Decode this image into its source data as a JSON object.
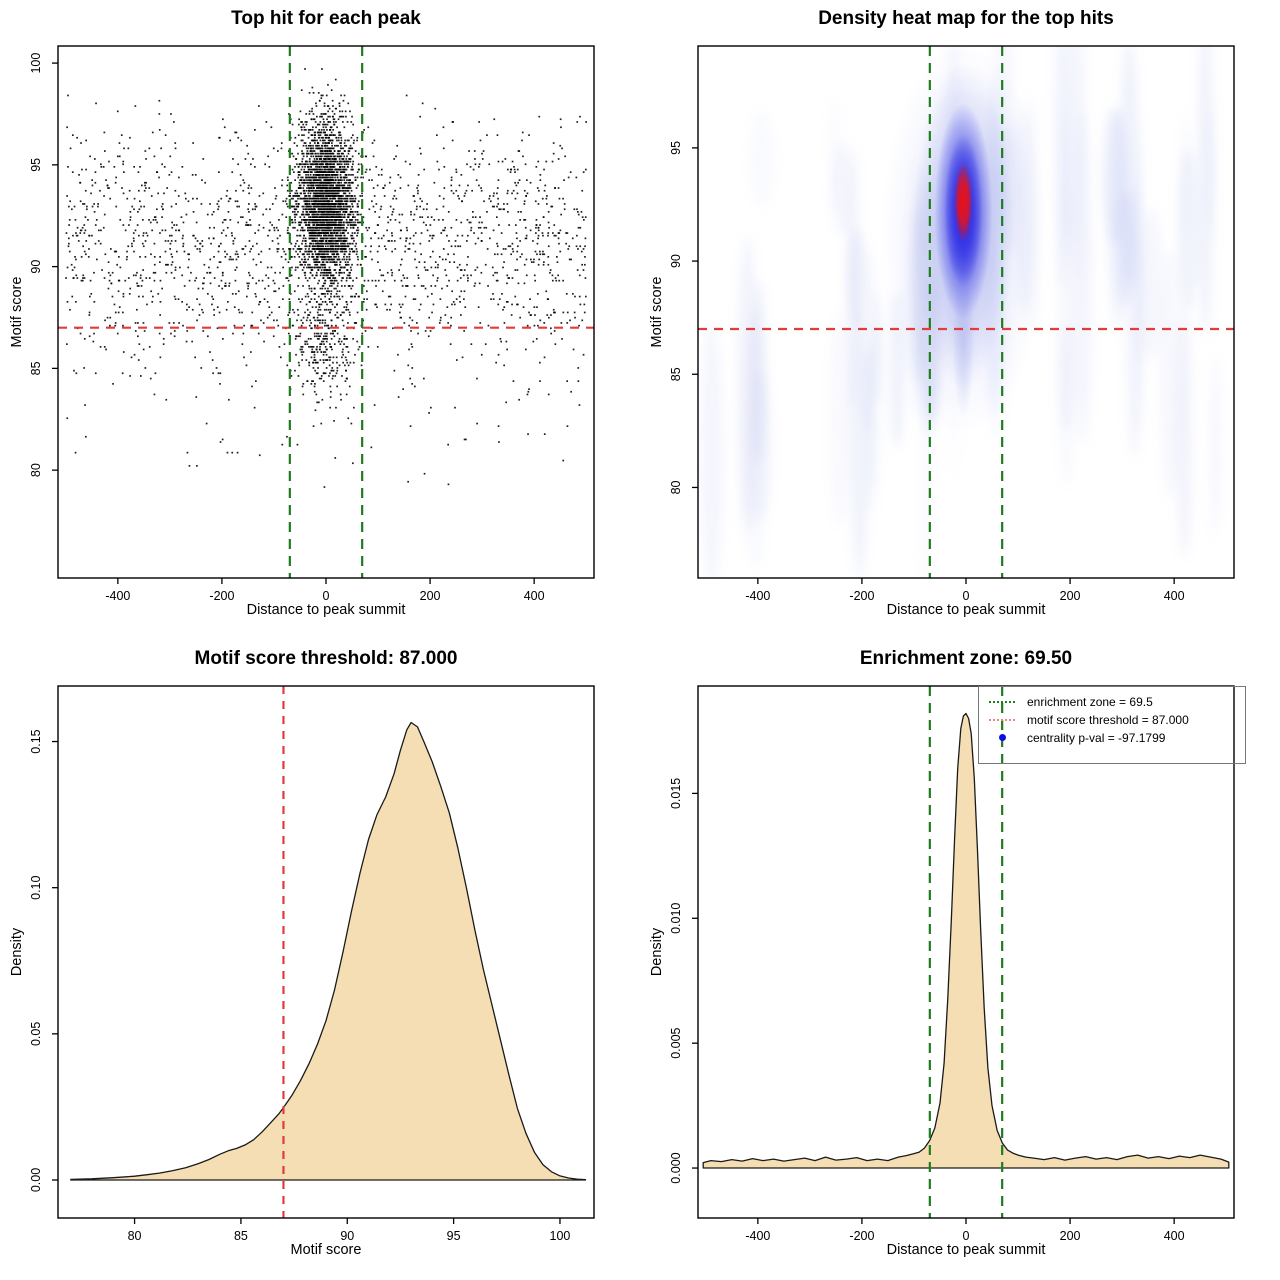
{
  "figure_background": "#ffffff",
  "colors": {
    "threshold_red": "#E03C3C",
    "enrichment_green": "#1E7D1E",
    "density_fill": "#F5DEB3",
    "density_stroke": "#1a1a1a",
    "point_black": "#000000",
    "legend_red_swatch": "#F08080",
    "legend_blue_dot": "#0D0DE8",
    "heat_halo": "#8892E6",
    "heat_dense": "#2424E4",
    "heat_core": "#F01111",
    "heat_streak": "#A9B4EC"
  },
  "chart_data": [
    {
      "id": "top_hit_scatter",
      "type": "scatter",
      "title": "Top hit for each peak",
      "xlabel": "Distance to peak summit",
      "ylabel": "Motif score",
      "xlim": [
        -515,
        515
      ],
      "ylim": [
        74.7,
        100.84
      ],
      "xticks": {
        "values": [
          -400,
          -200,
          0,
          200,
          400
        ],
        "labels": [
          "-400",
          "-200",
          "0",
          "200",
          "400"
        ]
      },
      "yticks": {
        "values": [
          80,
          85,
          90,
          95,
          100
        ],
        "labels": [
          "80",
          "85",
          "90",
          "95",
          "100"
        ]
      },
      "motif_score_threshold": 87.0,
      "enrichment_zone": [
        -69.5,
        69.5
      ],
      "grid": false,
      "seed": 42,
      "y_quantize": 0.13,
      "points": [
        {
          "n": 3200,
          "x": {
            "dist": "normal",
            "mean": 0,
            "sd": 27,
            "min": -500,
            "max": 500
          },
          "y": {
            "dist": "normal",
            "mean": 93.1,
            "sd": 2.0,
            "min": 86.8,
            "max": 100.3
          }
        },
        {
          "n": 260,
          "x": {
            "dist": "normal",
            "mean": 0,
            "sd": 33,
            "min": -500,
            "max": 500
          },
          "y": {
            "dist": "normal",
            "mean": 86.0,
            "sd": 1.3,
            "min": 82.5,
            "max": 88.5
          }
        },
        {
          "n": 1750,
          "x": {
            "dist": "uniform",
            "min": -500,
            "max": 500
          },
          "y": {
            "dist": "normal",
            "mean": 91.0,
            "sd": 3.0,
            "min": 79.8,
            "max": 98.6
          }
        },
        {
          "n": 55,
          "x": {
            "dist": "uniform",
            "min": -500,
            "max": 500
          },
          "y": {
            "dist": "uniform",
            "min": 79.0,
            "max": 84.5
          }
        }
      ]
    },
    {
      "id": "density_heatmap",
      "type": "heatmap",
      "title": "Density heat map for the top hits",
      "xlabel": "Distance to peak summit",
      "ylabel": "Motif score",
      "xlim": [
        -515,
        515
      ],
      "ylim": [
        76,
        99.5
      ],
      "xticks": {
        "values": [
          -400,
          -200,
          0,
          200,
          400
        ],
        "labels": [
          "-400",
          "-200",
          "0",
          "200",
          "400"
        ]
      },
      "yticks": {
        "values": [
          80,
          85,
          90,
          95
        ],
        "labels": [
          "80",
          "85",
          "90",
          "95"
        ]
      },
      "motif_score_threshold": 87.0,
      "enrichment_zone": [
        -69.5,
        69.5
      ],
      "grid": false,
      "hotspot": {
        "x": -5,
        "y": 92.6,
        "y_dense": 92.2,
        "y_halo": 91.6,
        "y_tail": 86.5
      },
      "streaks": {
        "count": 58,
        "seed": 7,
        "x_min": -500,
        "x_max": 500,
        "y_min": 80.5,
        "y_max": 96.5,
        "opacity_min": 0.05,
        "opacity_max": 0.17
      }
    },
    {
      "id": "score_density",
      "type": "area",
      "title": "Motif score threshold: 87.000",
      "xlabel": "Motif score",
      "ylabel": "Density",
      "xlim": [
        76.4,
        101.6
      ],
      "ylim": [
        -0.013,
        0.169
      ],
      "xticks": {
        "values": [
          80,
          85,
          90,
          95,
          100
        ],
        "labels": [
          "80",
          "85",
          "90",
          "95",
          "100"
        ]
      },
      "yticks": {
        "values": [
          0.0,
          0.05,
          0.1,
          0.15
        ],
        "labels": [
          "0.00",
          "0.05",
          "0.10",
          "0.15"
        ]
      },
      "threshold_line": {
        "x": 87.0,
        "style": "dashed",
        "color_key": "threshold_red"
      },
      "grid": false,
      "curve": {
        "x": [
          77.0,
          78.0,
          79.0,
          80.0,
          80.6,
          81.2,
          81.8,
          82.4,
          83.0,
          83.5,
          84.0,
          84.4,
          84.8,
          85.2,
          85.6,
          86.0,
          86.4,
          86.8,
          87.0,
          87.4,
          87.8,
          88.2,
          88.6,
          89.0,
          89.4,
          89.8,
          90.2,
          90.6,
          91.0,
          91.4,
          91.8,
          92.2,
          92.5,
          92.8,
          93.0,
          93.3,
          93.6,
          94.0,
          94.4,
          94.8,
          95.2,
          95.6,
          96.0,
          96.4,
          96.8,
          97.2,
          97.6,
          98.0,
          98.4,
          98.8,
          99.2,
          99.6,
          100.0,
          100.4,
          100.8,
          101.2
        ],
        "y": [
          0.0002,
          0.0004,
          0.0008,
          0.0013,
          0.0018,
          0.0024,
          0.0032,
          0.0042,
          0.0056,
          0.007,
          0.0088,
          0.01,
          0.0108,
          0.012,
          0.0138,
          0.0165,
          0.0196,
          0.0228,
          0.0248,
          0.029,
          0.034,
          0.0398,
          0.0465,
          0.0545,
          0.065,
          0.078,
          0.092,
          0.105,
          0.1165,
          0.125,
          0.131,
          0.139,
          0.147,
          0.154,
          0.1565,
          0.155,
          0.15,
          0.143,
          0.1345,
          0.1255,
          0.1135,
          0.1,
          0.0855,
          0.072,
          0.06,
          0.048,
          0.036,
          0.0245,
          0.016,
          0.0095,
          0.0052,
          0.0028,
          0.0014,
          0.0007,
          0.0003,
          0.0001
        ]
      }
    },
    {
      "id": "distance_density",
      "type": "area",
      "title": "Enrichment zone: 69.50",
      "xlabel": "Distance to peak summit",
      "ylabel": "Density",
      "xlim": [
        -515,
        515
      ],
      "ylim": [
        -0.002,
        0.0193
      ],
      "xticks": {
        "values": [
          -400,
          -200,
          0,
          200,
          400
        ],
        "labels": [
          "-400",
          "-200",
          "0",
          "200",
          "400"
        ]
      },
      "yticks": {
        "values": [
          0.0,
          0.005,
          0.01,
          0.015
        ],
        "labels": [
          "0.000",
          "0.005",
          "0.010",
          "0.015"
        ]
      },
      "enrichment_zone": [
        -69.5,
        69.5
      ],
      "grid": false,
      "legend": {
        "position": "top-right",
        "items": [
          {
            "swatch": "green-dotted",
            "label": "enrichment zone = 69.5"
          },
          {
            "swatch": "red-dotted",
            "label": "motif score threshold = 87.000"
          },
          {
            "swatch": "blue-dot",
            "label": "centrality p-val = -97.1799"
          }
        ]
      },
      "curve": {
        "x": [
          -505,
          -490,
          -470,
          -450,
          -430,
          -410,
          -390,
          -370,
          -350,
          -330,
          -310,
          -290,
          -270,
          -250,
          -230,
          -210,
          -190,
          -170,
          -150,
          -130,
          -115,
          -100,
          -90,
          -80,
          -70,
          -60,
          -50,
          -42,
          -35,
          -28,
          -22,
          -16,
          -10,
          -5,
          0,
          5,
          10,
          16,
          22,
          28,
          35,
          42,
          50,
          60,
          70,
          80,
          90,
          100,
          115,
          130,
          150,
          170,
          190,
          210,
          230,
          250,
          270,
          290,
          310,
          330,
          350,
          370,
          390,
          410,
          430,
          450,
          470,
          490,
          505
        ],
        "y": [
          0.00022,
          0.0003,
          0.00026,
          0.00034,
          0.00028,
          0.00038,
          0.0003,
          0.00036,
          0.00028,
          0.00034,
          0.0004,
          0.0003,
          0.00044,
          0.00032,
          0.00036,
          0.00042,
          0.0003,
          0.00036,
          0.0003,
          0.00044,
          0.0005,
          0.00058,
          0.00064,
          0.0008,
          0.0011,
          0.0016,
          0.0026,
          0.0042,
          0.0068,
          0.01,
          0.0132,
          0.016,
          0.0176,
          0.0181,
          0.0182,
          0.018,
          0.0174,
          0.0156,
          0.0128,
          0.0096,
          0.0064,
          0.004,
          0.0025,
          0.0015,
          0.001,
          0.00072,
          0.0006,
          0.00052,
          0.00044,
          0.0004,
          0.00034,
          0.00042,
          0.00032,
          0.0004,
          0.00046,
          0.00036,
          0.00042,
          0.00034,
          0.00046,
          0.00052,
          0.0004,
          0.00046,
          0.00038,
          0.00048,
          0.00042,
          0.00052,
          0.00044,
          0.00036,
          0.00024
        ]
      }
    }
  ]
}
